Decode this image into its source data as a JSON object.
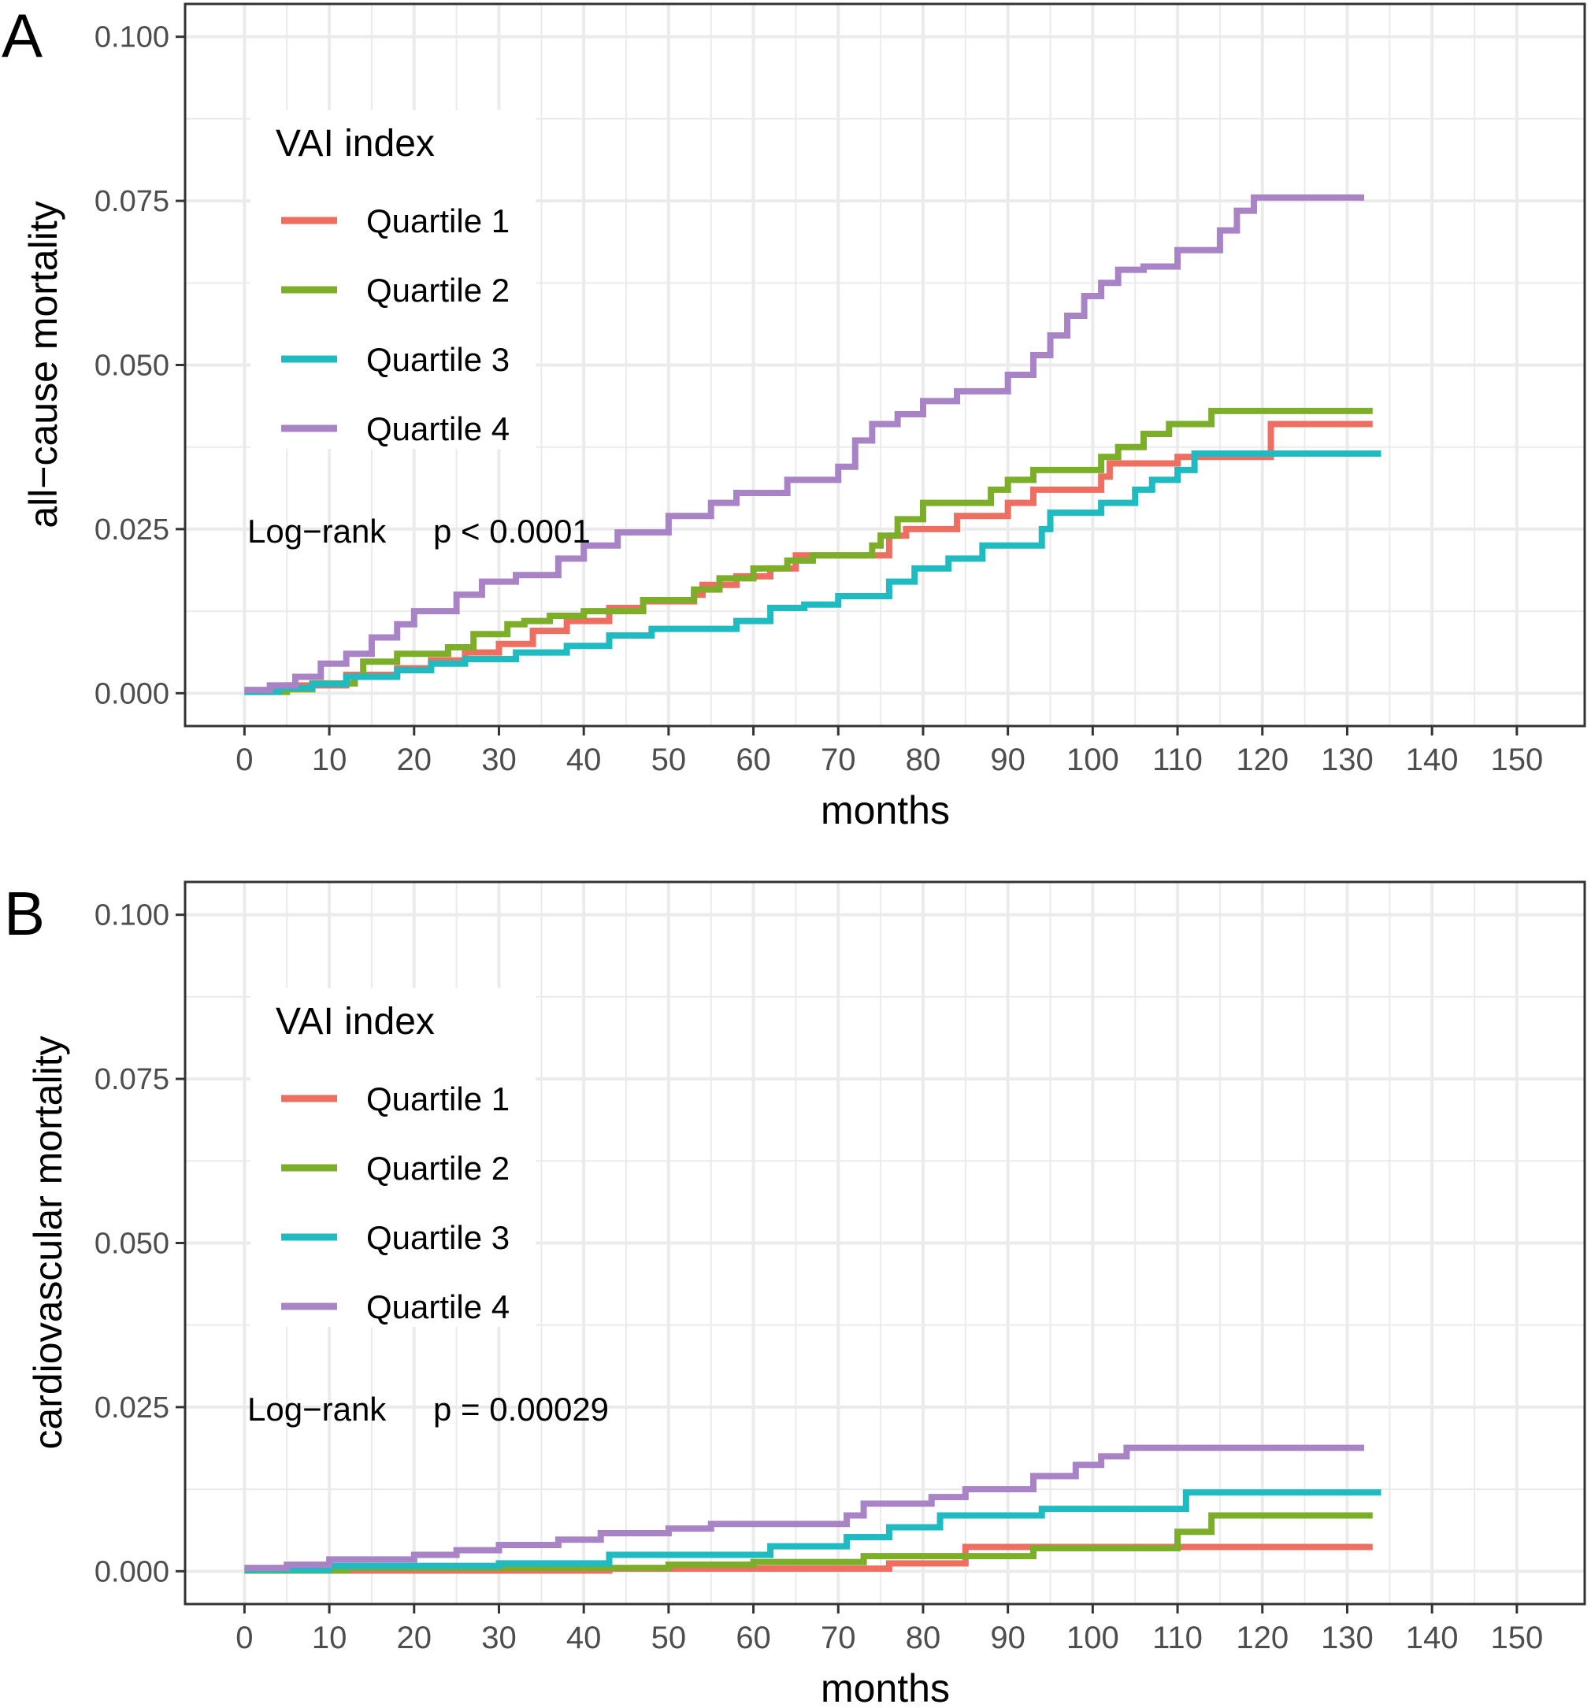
{
  "colors": {
    "q1": "#ED6F62",
    "q2": "#7CAE2A",
    "q3": "#1FBBC1",
    "q4": "#A883C5",
    "grid": "#EBEBEB",
    "panel_border": "#333333"
  },
  "chart_data": [
    {
      "type": "line",
      "panel_label": "A",
      "title": "",
      "xlabel": "months",
      "ylabel": "all−cause mortality",
      "xlim": [
        -7,
        158
      ],
      "ylim": [
        -0.005,
        0.105
      ],
      "x_ticks": [
        0,
        10,
        20,
        30,
        40,
        50,
        60,
        70,
        80,
        90,
        100,
        110,
        120,
        130,
        140,
        150
      ],
      "x_tick_labels": [
        "0",
        "10",
        "20",
        "30",
        "40",
        "50",
        "60",
        "70",
        "80",
        "90",
        "100",
        "110",
        "120",
        "130",
        "140",
        "150"
      ],
      "y_ticks": [
        0,
        0.025,
        0.05,
        0.075,
        0.1
      ],
      "y_tick_labels": [
        "0.000",
        "0.025",
        "0.050",
        "0.075",
        "0.100"
      ],
      "legend": {
        "title": "VAI index",
        "position": "top-left",
        "entries": [
          "Quartile 1",
          "Quartile 2",
          "Quartile 3",
          "Quartile 4"
        ]
      },
      "annotation": {
        "label": "Log−rank",
        "p_value": "p < 0.0001"
      },
      "step": true,
      "series": [
        {
          "name": "Quartile 1",
          "x": [
            0,
            5,
            12,
            18,
            22,
            26,
            30,
            34,
            38,
            43,
            47,
            53,
            54,
            58,
            62,
            65,
            76,
            78,
            84,
            90,
            93,
            101,
            102,
            110,
            121,
            133
          ],
          "y": [
            0.0004,
            0.0012,
            0.0028,
            0.0038,
            0.005,
            0.0062,
            0.0075,
            0.0095,
            0.011,
            0.013,
            0.014,
            0.015,
            0.0165,
            0.0178,
            0.019,
            0.021,
            0.024,
            0.025,
            0.027,
            0.029,
            0.031,
            0.033,
            0.035,
            0.036,
            0.041,
            0.041
          ]
        },
        {
          "name": "Quartile 2",
          "x": [
            0,
            5,
            8,
            13,
            14,
            18,
            24,
            27,
            31,
            33,
            36,
            40,
            47,
            53,
            56,
            60,
            64,
            67,
            74,
            75,
            77,
            80,
            88,
            90,
            93,
            101,
            103,
            106,
            109,
            114,
            133
          ],
          "y": [
            0.0002,
            0.0006,
            0.0015,
            0.0025,
            0.0048,
            0.006,
            0.007,
            0.009,
            0.0105,
            0.011,
            0.0118,
            0.0125,
            0.0142,
            0.0158,
            0.0175,
            0.019,
            0.0202,
            0.021,
            0.0225,
            0.024,
            0.0265,
            0.029,
            0.031,
            0.0325,
            0.034,
            0.036,
            0.0375,
            0.0395,
            0.041,
            0.043,
            0.043
          ]
        },
        {
          "name": "Quartile 3",
          "x": [
            0,
            4,
            8,
            12,
            18,
            22,
            26,
            32,
            38,
            43,
            48,
            58,
            62,
            66,
            70,
            76,
            79,
            83,
            87,
            94,
            95,
            101,
            105,
            107,
            110,
            112,
            134
          ],
          "y": [
            0.0002,
            0.0008,
            0.0014,
            0.0025,
            0.0035,
            0.0045,
            0.0052,
            0.0062,
            0.0072,
            0.0088,
            0.0098,
            0.011,
            0.013,
            0.0135,
            0.0148,
            0.017,
            0.019,
            0.0205,
            0.0225,
            0.025,
            0.0275,
            0.029,
            0.031,
            0.0325,
            0.034,
            0.0365,
            0.0365
          ]
        },
        {
          "name": "Quartile 4",
          "x": [
            0,
            3,
            6,
            9,
            12,
            15,
            18,
            20,
            25,
            28,
            32,
            37,
            40,
            44,
            50,
            55,
            58,
            64,
            70,
            72,
            74,
            77,
            80,
            84,
            90,
            93,
            95,
            97,
            99,
            101,
            103,
            106,
            110,
            115,
            117,
            119,
            132
          ],
          "y": [
            0.0005,
            0.0012,
            0.0025,
            0.0045,
            0.006,
            0.0085,
            0.0105,
            0.0125,
            0.015,
            0.017,
            0.018,
            0.0205,
            0.0225,
            0.0245,
            0.027,
            0.029,
            0.0305,
            0.0325,
            0.0345,
            0.0385,
            0.041,
            0.0425,
            0.0445,
            0.046,
            0.0485,
            0.0515,
            0.0545,
            0.0575,
            0.0605,
            0.0625,
            0.0645,
            0.065,
            0.0675,
            0.0705,
            0.0735,
            0.0755,
            0.0755
          ]
        }
      ]
    },
    {
      "type": "line",
      "panel_label": "B",
      "title": "",
      "xlabel": "months",
      "ylabel": "cardiovascular mortality",
      "xlim": [
        -7,
        158
      ],
      "ylim": [
        -0.005,
        0.105
      ],
      "x_ticks": [
        0,
        10,
        20,
        30,
        40,
        50,
        60,
        70,
        80,
        90,
        100,
        110,
        120,
        130,
        140,
        150
      ],
      "x_tick_labels": [
        "0",
        "10",
        "20",
        "30",
        "40",
        "50",
        "60",
        "70",
        "80",
        "90",
        "100",
        "110",
        "120",
        "130",
        "140",
        "150"
      ],
      "y_ticks": [
        0,
        0.025,
        0.05,
        0.075,
        0.1
      ],
      "y_tick_labels": [
        "0.000",
        "0.025",
        "0.050",
        "0.075",
        "0.100"
      ],
      "legend": {
        "title": "VAI index",
        "position": "top-left",
        "entries": [
          "Quartile 1",
          "Quartile 2",
          "Quartile 3",
          "Quartile 4"
        ]
      },
      "annotation": {
        "label": "Log−rank",
        "p_value": "p = 0.00029"
      },
      "step": true,
      "series": [
        {
          "name": "Quartile 1",
          "x": [
            0,
            43,
            76,
            85,
            133
          ],
          "y": [
            0.0001,
            0.0004,
            0.0012,
            0.0037,
            0.0037
          ]
        },
        {
          "name": "Quartile 2",
          "x": [
            0,
            12,
            50,
            60,
            73,
            93,
            110,
            114,
            133
          ],
          "y": [
            0.0001,
            0.0005,
            0.001,
            0.0014,
            0.0023,
            0.0035,
            0.006,
            0.0085,
            0.0085
          ]
        },
        {
          "name": "Quartile 3",
          "x": [
            0,
            10,
            30,
            43,
            62,
            71,
            76,
            82,
            94,
            111,
            134
          ],
          "y": [
            0.0002,
            0.0008,
            0.0012,
            0.0025,
            0.0038,
            0.0052,
            0.0067,
            0.0085,
            0.0095,
            0.012,
            0.012
          ]
        },
        {
          "name": "Quartile 4",
          "x": [
            0,
            5,
            10,
            20,
            25,
            30,
            37,
            42,
            50,
            55,
            71,
            73,
            81,
            85,
            93,
            98,
            101,
            104,
            132
          ],
          "y": [
            0.0005,
            0.001,
            0.0018,
            0.0025,
            0.0032,
            0.004,
            0.0048,
            0.0058,
            0.0065,
            0.0072,
            0.0085,
            0.0103,
            0.0113,
            0.0125,
            0.0145,
            0.0162,
            0.0175,
            0.0188,
            0.0188
          ]
        }
      ]
    }
  ]
}
